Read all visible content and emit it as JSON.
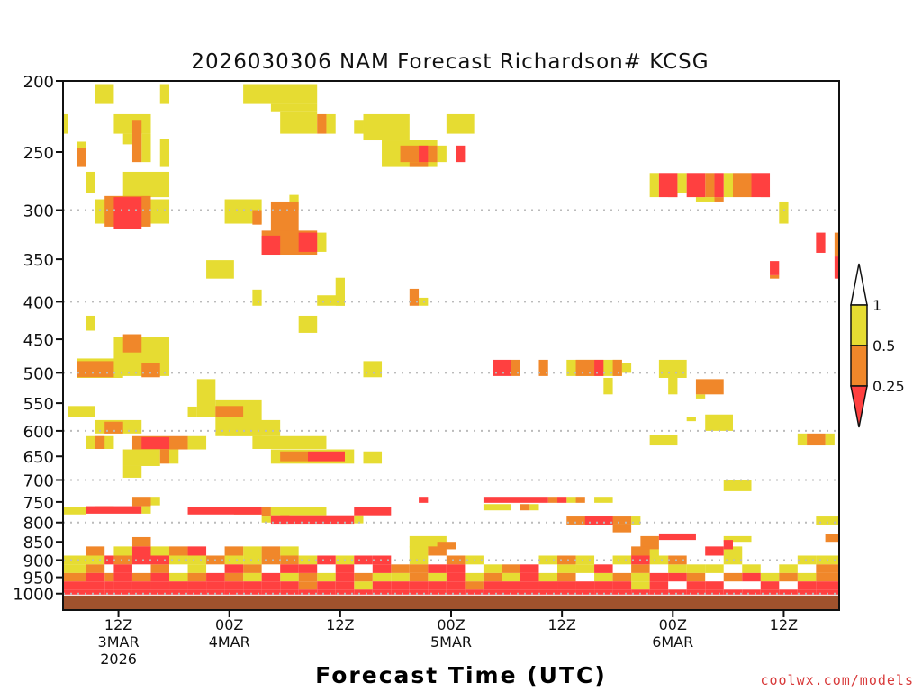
{
  "chart_data": {
    "type": "heatmap",
    "title": "2026030306 NAM Forecast Richardson# KCSG",
    "xlabel": "Forecast Time (UTC)",
    "ylabel": "",
    "y_scale": "log",
    "ylim": [
      200,
      1053
    ],
    "xlim_hours": [
      0,
      84
    ],
    "grid": {
      "dotted_levels": [
        300,
        400,
        500,
        600,
        700,
        800,
        900,
        1000
      ]
    },
    "yticks": [
      "200",
      "250",
      "300",
      "350",
      "400",
      "450",
      "500",
      "550",
      "600",
      "650",
      "700",
      "750",
      "800",
      "850",
      "900",
      "950",
      "1000"
    ],
    "xticks": [
      {
        "hour": 6,
        "lines": [
          "12Z",
          "3MAR",
          "2026"
        ]
      },
      {
        "hour": 18,
        "lines": [
          "00Z",
          "4MAR"
        ]
      },
      {
        "hour": 30,
        "lines": [
          "12Z"
        ]
      },
      {
        "hour": 42,
        "lines": [
          "00Z",
          "5MAR"
        ]
      },
      {
        "hour": 54,
        "lines": [
          "12Z"
        ]
      },
      {
        "hour": 66,
        "lines": [
          "00Z",
          "6MAR"
        ]
      },
      {
        "hour": 78,
        "lines": [
          "12Z"
        ]
      }
    ],
    "colors": {
      "y": "#e6dc32",
      "o": "#f0872a",
      "r": "#ff4040",
      "surface": "#a0522d"
    },
    "legend": {
      "placement": "right",
      "labels": [
        "1",
        "0.5",
        "0.25"
      ]
    },
    "surface_pressure": 1006,
    "cells": [
      [
        4,
        5,
        202,
        215,
        "y"
      ],
      [
        11,
        11,
        202,
        215,
        "y"
      ],
      [
        20,
        27,
        202,
        215,
        "y"
      ],
      [
        23,
        27,
        215,
        220,
        "y"
      ],
      [
        24,
        27,
        220,
        236,
        "y"
      ],
      [
        28,
        28,
        222,
        236,
        "o"
      ],
      [
        29,
        29,
        222,
        236,
        "y"
      ],
      [
        0,
        0,
        222,
        236,
        "y"
      ],
      [
        6,
        9,
        222,
        236,
        "y"
      ],
      [
        8,
        8,
        226,
        258,
        "o"
      ],
      [
        9,
        9,
        236,
        258,
        "y"
      ],
      [
        7,
        7,
        236,
        244,
        "y"
      ],
      [
        11,
        11,
        240,
        262,
        "y"
      ],
      [
        2,
        2,
        242,
        247,
        "y"
      ],
      [
        2,
        2,
        247,
        262,
        "o"
      ],
      [
        3,
        3,
        266,
        284,
        "y"
      ],
      [
        7,
        11,
        266,
        288,
        "y"
      ],
      [
        4,
        11,
        290,
        313,
        "y"
      ],
      [
        5,
        9,
        287,
        316,
        "o"
      ],
      [
        6,
        8,
        288,
        318,
        "r"
      ],
      [
        16,
        18,
        351,
        372,
        "y"
      ],
      [
        18,
        21,
        290,
        313,
        "y"
      ],
      [
        21,
        21,
        300,
        314,
        "o"
      ],
      [
        25,
        25,
        286,
        300,
        "y"
      ],
      [
        23,
        25,
        292,
        325,
        "o"
      ],
      [
        22,
        27,
        320,
        345,
        "o"
      ],
      [
        22,
        23,
        325,
        345,
        "r"
      ],
      [
        26,
        27,
        322,
        342,
        "r"
      ],
      [
        28,
        28,
        322,
        342,
        "y"
      ],
      [
        32,
        32,
        226,
        236,
        "y"
      ],
      [
        33,
        37,
        222,
        241,
        "y"
      ],
      [
        35,
        40,
        241,
        262,
        "y"
      ],
      [
        37,
        39,
        245,
        258,
        "o"
      ],
      [
        38,
        39,
        258,
        262,
        "o"
      ],
      [
        39,
        39,
        245,
        258,
        "r"
      ],
      [
        40,
        40,
        245,
        258,
        "o"
      ],
      [
        41,
        41,
        245,
        258,
        "y"
      ],
      [
        43,
        43,
        245,
        258,
        "r"
      ],
      [
        42,
        44,
        222,
        236,
        "y"
      ],
      [
        38,
        38,
        384,
        405,
        "o"
      ],
      [
        39,
        39,
        395,
        405,
        "y"
      ],
      [
        30,
        30,
        371,
        405,
        "y"
      ],
      [
        21,
        21,
        385,
        405,
        "y"
      ],
      [
        28,
        30,
        392,
        405,
        "y"
      ],
      [
        26,
        27,
        418,
        441,
        "y"
      ],
      [
        3,
        3,
        418,
        438,
        "y"
      ],
      [
        6,
        11,
        447,
        505,
        "y"
      ],
      [
        7,
        8,
        443,
        469,
        "o"
      ],
      [
        2,
        6,
        478,
        508,
        "y"
      ],
      [
        2,
        5,
        482,
        507,
        "o"
      ],
      [
        9,
        10,
        485,
        507,
        "o"
      ],
      [
        33,
        34,
        482,
        507,
        "y"
      ],
      [
        15,
        16,
        510,
        575,
        "y"
      ],
      [
        14,
        14,
        556,
        574,
        "y"
      ],
      [
        17,
        21,
        545,
        610,
        "y"
      ],
      [
        18,
        23,
        580,
        610,
        "y"
      ],
      [
        17,
        19,
        555,
        575,
        "o"
      ],
      [
        21,
        28,
        610,
        635,
        "y"
      ],
      [
        1,
        3,
        555,
        575,
        "y"
      ],
      [
        4,
        8,
        580,
        605,
        "y"
      ],
      [
        5,
        6,
        583,
        605,
        "o"
      ],
      [
        3,
        5,
        610,
        635,
        "y"
      ],
      [
        4,
        4,
        610,
        635,
        "o"
      ],
      [
        8,
        13,
        610,
        636,
        "o"
      ],
      [
        9,
        11,
        612,
        635,
        "r"
      ],
      [
        14,
        15,
        610,
        636,
        "y"
      ],
      [
        7,
        10,
        636,
        670,
        "y"
      ],
      [
        7,
        8,
        670,
        695,
        "y"
      ],
      [
        11,
        11,
        636,
        665,
        "o"
      ],
      [
        12,
        12,
        636,
        665,
        "y"
      ],
      [
        23,
        31,
        636,
        665,
        "y"
      ],
      [
        24,
        26,
        640,
        660,
        "o"
      ],
      [
        27,
        30,
        640,
        660,
        "r"
      ],
      [
        33,
        34,
        640,
        665,
        "y"
      ],
      [
        47,
        48,
        480,
        505,
        "r"
      ],
      [
        49,
        49,
        480,
        505,
        "o"
      ],
      [
        52,
        52,
        480,
        505,
        "o"
      ],
      [
        55,
        60,
        480,
        505,
        "y"
      ],
      [
        56,
        57,
        480,
        505,
        "o"
      ],
      [
        58,
        58,
        480,
        505,
        "r"
      ],
      [
        60,
        60,
        480,
        505,
        "o"
      ],
      [
        61,
        61,
        485,
        500,
        "y"
      ],
      [
        65,
        67,
        480,
        508,
        "y"
      ],
      [
        59,
        59,
        508,
        535,
        "y"
      ],
      [
        66,
        66,
        508,
        535,
        "y"
      ],
      [
        69,
        71,
        510,
        535,
        "o"
      ],
      [
        69,
        69,
        535,
        542,
        "y"
      ],
      [
        70,
        72,
        570,
        600,
        "y"
      ],
      [
        68,
        68,
        575,
        582,
        "y"
      ],
      [
        64,
        66,
        608,
        628,
        "y"
      ],
      [
        80,
        80,
        605,
        628,
        "y"
      ],
      [
        81,
        82,
        605,
        628,
        "o"
      ],
      [
        83,
        83,
        605,
        628,
        "y"
      ],
      [
        64,
        64,
        267,
        288,
        "y"
      ],
      [
        65,
        66,
        267,
        288,
        "r"
      ],
      [
        66,
        66,
        283,
        288,
        "o"
      ],
      [
        67,
        67,
        267,
        284,
        "y"
      ],
      [
        68,
        69,
        267,
        288,
        "r"
      ],
      [
        69,
        70,
        288,
        292,
        "y"
      ],
      [
        70,
        70,
        267,
        288,
        "o"
      ],
      [
        71,
        71,
        267,
        288,
        "r"
      ],
      [
        71,
        71,
        288,
        292,
        "o"
      ],
      [
        72,
        72,
        267,
        288,
        "y"
      ],
      [
        73,
        74,
        267,
        288,
        "o"
      ],
      [
        75,
        76,
        267,
        288,
        "r"
      ],
      [
        76,
        76,
        284,
        288,
        "o"
      ],
      [
        78,
        78,
        292,
        313,
        "y"
      ],
      [
        82,
        82,
        322,
        343,
        "r"
      ],
      [
        84,
        84,
        322,
        347,
        "o"
      ],
      [
        84,
        84,
        347,
        372,
        "r"
      ],
      [
        77,
        77,
        352,
        368,
        "r"
      ],
      [
        77,
        77,
        368,
        372,
        "o"
      ],
      [
        39,
        39,
        738,
        752,
        "r"
      ],
      [
        46,
        52,
        738,
        752,
        "r"
      ],
      [
        46,
        48,
        755,
        770,
        "y"
      ],
      [
        50,
        50,
        755,
        770,
        "o"
      ],
      [
        51,
        51,
        755,
        770,
        "y"
      ],
      [
        53,
        53,
        738,
        752,
        "o"
      ],
      [
        54,
        54,
        738,
        752,
        "r"
      ],
      [
        55,
        55,
        738,
        752,
        "y"
      ],
      [
        56,
        56,
        738,
        752,
        "o"
      ],
      [
        58,
        59,
        738,
        752,
        "y"
      ],
      [
        72,
        74,
        700,
        725,
        "y"
      ],
      [
        82,
        84,
        785,
        805,
        "y"
      ],
      [
        0,
        2,
        762,
        780,
        "y"
      ],
      [
        3,
        8,
        760,
        778,
        "r"
      ],
      [
        4,
        5,
        760,
        765,
        "o"
      ],
      [
        9,
        9,
        760,
        778,
        "y"
      ],
      [
        8,
        9,
        738,
        760,
        "o"
      ],
      [
        10,
        10,
        738,
        758,
        "y"
      ],
      [
        14,
        21,
        762,
        780,
        "r"
      ],
      [
        19,
        21,
        762,
        780,
        "o"
      ],
      [
        22,
        22,
        762,
        785,
        "o"
      ],
      [
        22,
        23,
        785,
        800,
        "y"
      ],
      [
        23,
        28,
        762,
        782,
        "y"
      ],
      [
        23,
        31,
        782,
        803,
        "r"
      ],
      [
        24,
        24,
        782,
        803,
        "o"
      ],
      [
        32,
        35,
        762,
        782,
        "r"
      ],
      [
        32,
        32,
        782,
        802,
        "y"
      ],
      [
        55,
        61,
        785,
        805,
        "o"
      ],
      [
        57,
        59,
        785,
        805,
        "r"
      ],
      [
        62,
        62,
        785,
        805,
        "y"
      ],
      [
        60,
        61,
        805,
        825,
        "o"
      ],
      [
        65,
        68,
        828,
        845,
        "r"
      ],
      [
        63,
        64,
        835,
        870,
        "o"
      ],
      [
        63,
        64,
        870,
        895,
        "y"
      ],
      [
        38,
        41,
        835,
        865,
        "y"
      ],
      [
        41,
        42,
        850,
        870,
        "o"
      ],
      [
        72,
        74,
        835,
        850,
        "y"
      ],
      [
        72,
        72,
        845,
        870,
        "r"
      ],
      [
        83,
        84,
        830,
        850,
        "o"
      ]
    ],
    "low_level": {
      "levels": [
        850,
        875,
        900,
        925,
        950,
        975,
        1000
      ],
      "spans": [
        [
          0,
          2,
          "..yyorr"
        ],
        [
          3,
          4,
          ".oyorrr"
        ],
        [
          5,
          5,
          "..r.orr"
        ],
        [
          6,
          7,
          ".yorrrr"
        ],
        [
          8,
          9,
          "orr.orr"
        ],
        [
          10,
          11,
          ".yrorrr"
        ],
        [
          12,
          13,
          ".oy.yrr"
        ],
        [
          14,
          15,
          ".ryyorr"
        ],
        [
          16,
          17,
          "..o.rrr"
        ],
        [
          18,
          19,
          ".oyrorr"
        ],
        [
          20,
          21,
          ".yyoyrr"
        ],
        [
          22,
          23,
          ".oo.rrr"
        ],
        [
          24,
          25,
          ".yoryrr"
        ],
        [
          26,
          27,
          "..yroor"
        ],
        [
          28,
          29,
          "..r.yrr"
        ],
        [
          30,
          31,
          "..yrrrr"
        ],
        [
          32,
          33,
          "..r.oyr"
        ],
        [
          34,
          35,
          "..rryrr"
        ],
        [
          36,
          37,
          "...oyrr"
        ],
        [
          38,
          39,
          ".yyoorr"
        ],
        [
          40,
          41,
          ".o.ryrr"
        ],
        [
          42,
          43,
          "..orrrr"
        ],
        [
          44,
          45,
          "..y.yor"
        ],
        [
          46,
          47,
          "...yorr"
        ],
        [
          48,
          49,
          "...oyrr"
        ],
        [
          50,
          51,
          "...rrrr"
        ],
        [
          52,
          53,
          "..y.yrr"
        ],
        [
          54,
          55,
          "..oyorr"
        ],
        [
          56,
          57,
          "..yy.rr"
        ],
        [
          58,
          59,
          "...ryrr"
        ],
        [
          60,
          61,
          "..y.orr"
        ],
        [
          62,
          63,
          ".oroyyr"
        ],
        [
          64,
          65,
          "..y.rrr"
        ],
        [
          66,
          67,
          "..oyr.r"
        ],
        [
          68,
          69,
          "...yorr"
        ],
        [
          70,
          71,
          ".r.y.rr"
        ],
        [
          72,
          73,
          ".yy.o.r"
        ],
        [
          74,
          75,
          "...yr.r"
        ],
        [
          76,
          77,
          "....yrr"
        ],
        [
          78,
          79,
          "...yo.r"
        ],
        [
          80,
          81,
          "..y.yrr"
        ],
        [
          82,
          84,
          "..yoorr"
        ]
      ]
    }
  },
  "credit": "coolwx.com/models"
}
